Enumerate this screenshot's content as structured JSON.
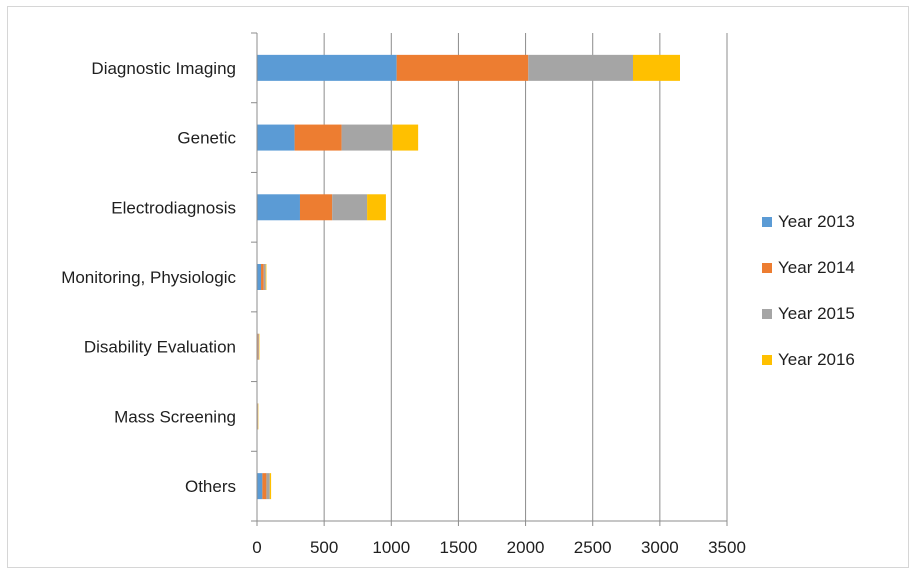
{
  "chart_data": {
    "type": "bar",
    "orientation": "horizontal",
    "stacked": true,
    "categories": [
      "Diagnostic Imaging",
      "Genetic",
      "Electrodiagnosis",
      "Monitoring, Physiologic",
      "Disability Evaluation",
      "Mass Screening",
      "Others"
    ],
    "series": [
      {
        "name": "Year 2013",
        "color": "#5B9BD5",
        "values": [
          1040,
          280,
          320,
          30,
          5,
          3,
          40
        ]
      },
      {
        "name": "Year 2014",
        "color": "#ED7D31",
        "values": [
          980,
          350,
          240,
          20,
          5,
          3,
          30
        ]
      },
      {
        "name": "Year 2015",
        "color": "#A5A5A5",
        "values": [
          780,
          380,
          260,
          15,
          5,
          3,
          25
        ]
      },
      {
        "name": "Year 2016",
        "color": "#FFC000",
        "values": [
          350,
          190,
          140,
          5,
          3,
          2,
          10
        ]
      }
    ],
    "xlim": [
      0,
      3500
    ],
    "xticks": [
      "0",
      "500",
      "1000",
      "1500",
      "2000",
      "2500",
      "3000",
      "3500"
    ],
    "grid": true,
    "legend_position": "right",
    "title": "",
    "xlabel": "",
    "ylabel": ""
  }
}
